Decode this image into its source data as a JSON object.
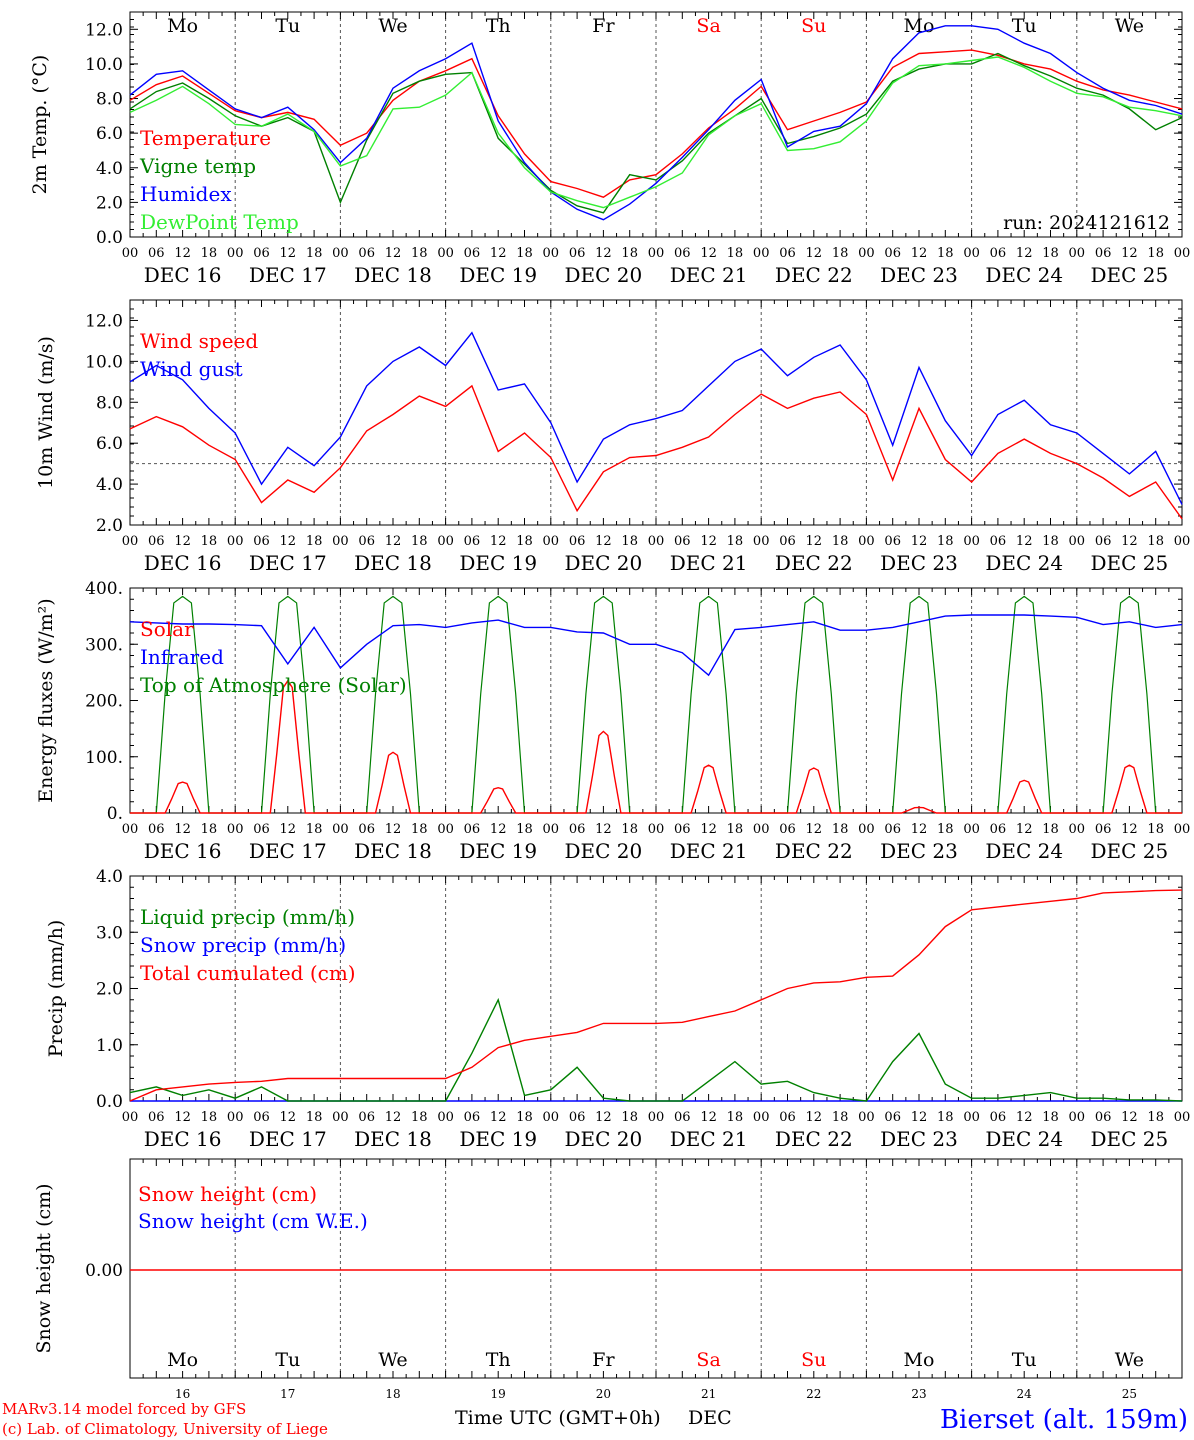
{
  "days": {
    "labels": [
      "Mo",
      "Tu",
      "We",
      "Th",
      "Fr",
      "Sa",
      "Su",
      "Mo",
      "Tu",
      "We"
    ],
    "weekend_flags": [
      false,
      false,
      false,
      false,
      false,
      true,
      true,
      false,
      false,
      false
    ],
    "dates": [
      "DEC 16",
      "DEC 17",
      "DEC 18",
      "DEC 19",
      "DEC 20",
      "DEC 21",
      "DEC 22",
      "DEC 23",
      "DEC 24",
      "DEC 25"
    ],
    "day_numbers": [
      "16",
      "17",
      "18",
      "19",
      "20",
      "21",
      "22",
      "23",
      "24",
      "25"
    ],
    "hour_ticks": [
      "00",
      "06",
      "12",
      "18"
    ],
    "final_tick": "00"
  },
  "footer": {
    "credit_line1": "MARv3.14 model forced by GFS",
    "credit_line2": "(c) Lab. of Climatology, University of Liege",
    "time_axis": "Time UTC (GMT+0h)",
    "month": "DEC",
    "station": "Bierset (alt. 159m)"
  },
  "colors": {
    "red": "#ff0000",
    "green": "#008000",
    "blue": "#0000ff",
    "light_green": "#33ee33",
    "grid": "#555555",
    "axis": "#000000"
  },
  "chart_data": [
    {
      "type": "line",
      "ylabel": "2m Temp. (°C)",
      "ylim": [
        0,
        13
      ],
      "yticks": [
        "0.0",
        "2.0",
        "4.0",
        "6.0",
        "8.0",
        "10.0",
        "12.0"
      ],
      "annotation": "run: 2024121612",
      "x_hours": [
        0,
        6,
        12,
        18,
        24,
        30,
        36,
        42,
        48,
        54,
        60,
        66,
        72,
        78,
        84,
        90,
        96,
        102,
        108,
        114,
        120,
        126,
        132,
        138,
        144,
        150,
        156,
        162,
        168,
        174,
        180,
        186,
        192,
        198,
        204,
        210,
        216,
        222,
        228,
        234,
        240
      ],
      "series": [
        {
          "name": "Temperature",
          "color": "red",
          "values": [
            7.9,
            8.8,
            9.3,
            8.3,
            7.3,
            6.9,
            7.2,
            6.8,
            5.3,
            6.0,
            7.9,
            9.0,
            9.6,
            10.3,
            7.0,
            4.8,
            3.2,
            2.8,
            2.3,
            3.3,
            3.6,
            4.8,
            6.3,
            7.4,
            8.7,
            6.2,
            6.7,
            7.2,
            7.8,
            9.8,
            10.6,
            10.7,
            10.8,
            10.5,
            10.0,
            9.7,
            9.0,
            8.5,
            8.2,
            7.8,
            7.4
          ]
        },
        {
          "name": "Vigne temp",
          "color": "green",
          "values": [
            7.4,
            8.4,
            8.9,
            8.0,
            7.0,
            6.4,
            6.9,
            6.1,
            2.0,
            5.6,
            8.3,
            9.0,
            9.4,
            9.5,
            5.7,
            4.2,
            2.7,
            1.8,
            1.4,
            3.6,
            3.3,
            4.4,
            6.0,
            7.0,
            8.0,
            5.4,
            5.8,
            6.3,
            7.1,
            9.0,
            9.7,
            10.0,
            10.0,
            10.6,
            9.9,
            9.3,
            8.6,
            8.2,
            7.4,
            6.2,
            6.9
          ]
        },
        {
          "name": "Humidex",
          "color": "blue",
          "values": [
            8.2,
            9.4,
            9.6,
            8.5,
            7.4,
            6.9,
            7.5,
            6.2,
            4.3,
            5.7,
            8.6,
            9.6,
            10.3,
            11.2,
            6.7,
            4.3,
            2.6,
            1.6,
            1.0,
            1.9,
            3.1,
            4.6,
            6.2,
            7.9,
            9.1,
            5.2,
            6.1,
            6.4,
            7.7,
            10.3,
            11.8,
            12.2,
            12.2,
            12.0,
            11.2,
            10.6,
            9.5,
            8.6,
            7.9,
            7.6,
            7.1
          ]
        },
        {
          "name": "DewPoint Temp",
          "color": "light_green",
          "values": [
            7.2,
            7.9,
            8.7,
            7.7,
            6.5,
            6.4,
            7.1,
            6.1,
            4.1,
            4.7,
            7.4,
            7.5,
            8.2,
            9.5,
            6.0,
            4.0,
            2.6,
            2.1,
            1.7,
            2.3,
            2.9,
            3.7,
            5.9,
            7.0,
            7.7,
            5.0,
            5.1,
            5.5,
            6.7,
            8.9,
            9.9,
            10.0,
            10.2,
            10.4,
            9.8,
            9.0,
            8.3,
            8.1,
            7.5,
            7.3,
            7.0
          ]
        }
      ]
    },
    {
      "type": "line",
      "ylabel": "10m Wind (m/s)",
      "ylim": [
        2,
        13
      ],
      "yticks": [
        "2.0",
        "4.0",
        "6.0",
        "8.0",
        "10.0",
        "12.0"
      ],
      "reference_line": 5,
      "x_hours": [
        0,
        6,
        12,
        18,
        24,
        30,
        36,
        42,
        48,
        54,
        60,
        66,
        72,
        78,
        84,
        90,
        96,
        102,
        108,
        114,
        120,
        126,
        132,
        138,
        144,
        150,
        156,
        162,
        168,
        174,
        180,
        186,
        192,
        198,
        204,
        210,
        216,
        222,
        228,
        234,
        240
      ],
      "series": [
        {
          "name": "Wind speed",
          "color": "red",
          "values": [
            6.7,
            7.3,
            6.8,
            5.9,
            5.2,
            3.1,
            4.2,
            3.6,
            4.8,
            6.6,
            7.4,
            8.3,
            7.8,
            8.8,
            5.6,
            6.5,
            5.3,
            2.7,
            4.6,
            5.3,
            5.4,
            5.8,
            6.3,
            7.4,
            8.4,
            7.7,
            8.2,
            8.5,
            7.4,
            4.2,
            7.7,
            5.2,
            4.1,
            5.5,
            6.2,
            5.5,
            5.0,
            4.3,
            3.4,
            4.1,
            2.3
          ]
        },
        {
          "name": "Wind gust",
          "color": "blue",
          "values": [
            9.0,
            9.8,
            9.1,
            7.7,
            6.5,
            4.0,
            5.8,
            4.9,
            6.3,
            8.8,
            10.0,
            10.7,
            9.8,
            11.4,
            8.6,
            8.9,
            7.0,
            4.1,
            6.2,
            6.9,
            7.2,
            7.6,
            8.8,
            10.0,
            10.6,
            9.3,
            10.2,
            10.8,
            9.1,
            5.9,
            9.7,
            7.1,
            5.4,
            7.4,
            8.1,
            6.9,
            6.5,
            5.5,
            4.5,
            5.6,
            3.0
          ]
        }
      ]
    },
    {
      "type": "line",
      "ylabel": "Energy fluxes (W/m²)",
      "ylim": [
        0,
        400
      ],
      "yticks": [
        "0.",
        "100.",
        "200.",
        "300.",
        "400."
      ],
      "x_hours": [
        0,
        6,
        12,
        18,
        24,
        30,
        36,
        42,
        48,
        54,
        60,
        66,
        72,
        78,
        84,
        90,
        96,
        102,
        108,
        114,
        120,
        126,
        132,
        138,
        144,
        150,
        156,
        162,
        168,
        174,
        180,
        186,
        192,
        198,
        204,
        210,
        216,
        222,
        228,
        234,
        240
      ],
      "series": [
        {
          "name": "Solar",
          "color": "red",
          "peaks": [
            {
              "hour": 12,
              "value": 55
            },
            {
              "hour": 36,
              "value": 235
            },
            {
              "hour": 60,
              "value": 108
            },
            {
              "hour": 84,
              "value": 45
            },
            {
              "hour": 108,
              "value": 145
            },
            {
              "hour": 132,
              "value": 85
            },
            {
              "hour": 156,
              "value": 80
            },
            {
              "hour": 180,
              "value": 10
            },
            {
              "hour": 204,
              "value": 58
            },
            {
              "hour": 228,
              "value": 85
            }
          ]
        },
        {
          "name": "Infrared",
          "color": "blue",
          "values": [
            340,
            338,
            336,
            336,
            335,
            333,
            265,
            330,
            258,
            300,
            333,
            335,
            330,
            338,
            343,
            330,
            330,
            322,
            320,
            300,
            300,
            285,
            245,
            326,
            330,
            335,
            340,
            325,
            325,
            330,
            340,
            350,
            352,
            352,
            352,
            350,
            348,
            335,
            340,
            330,
            335
          ]
        },
        {
          "name": "Top of Atmosphere (Solar)",
          "color": "green",
          "peak_hours": [
            12,
            36,
            60,
            84,
            108,
            132,
            156,
            180,
            204,
            228
          ],
          "peak_value": 385
        }
      ]
    },
    {
      "type": "line",
      "ylabel": "Precip (mm/h)",
      "ylim": [
        0,
        4
      ],
      "yticks": [
        "0.0",
        "1.0",
        "2.0",
        "3.0",
        "4.0"
      ],
      "x_hours": [
        0,
        6,
        12,
        18,
        24,
        30,
        36,
        42,
        48,
        54,
        60,
        66,
        72,
        78,
        84,
        90,
        96,
        102,
        108,
        114,
        120,
        126,
        132,
        138,
        144,
        150,
        156,
        162,
        168,
        174,
        180,
        186,
        192,
        198,
        204,
        210,
        216,
        222,
        228,
        234,
        240
      ],
      "series": [
        {
          "name": "Liquid precip (mm/h)",
          "color": "green",
          "values": [
            0.15,
            0.25,
            0.1,
            0.2,
            0.05,
            0.25,
            0.0,
            0.0,
            0.0,
            0.0,
            0.0,
            0.0,
            0.0,
            0.85,
            1.8,
            0.1,
            0.2,
            0.6,
            0.05,
            0.0,
            0.0,
            0.0,
            0.35,
            0.7,
            0.3,
            0.35,
            0.15,
            0.05,
            0.0,
            0.7,
            1.2,
            0.3,
            0.05,
            0.05,
            0.1,
            0.15,
            0.05,
            0.05,
            0.02,
            0.02,
            0.0
          ]
        },
        {
          "name": "Snow precip (mm/h)",
          "color": "blue",
          "values": [
            0,
            0,
            0,
            0,
            0,
            0,
            0,
            0,
            0,
            0,
            0,
            0,
            0,
            0,
            0,
            0,
            0,
            0,
            0,
            0,
            0,
            0,
            0,
            0,
            0,
            0,
            0,
            0,
            0,
            0,
            0,
            0,
            0,
            0,
            0,
            0,
            0,
            0,
            0,
            0,
            0
          ]
        },
        {
          "name": "Total cumulated (cm)",
          "color": "red",
          "values": [
            0.0,
            0.2,
            0.25,
            0.3,
            0.33,
            0.35,
            0.4,
            0.4,
            0.4,
            0.4,
            0.4,
            0.4,
            0.4,
            0.6,
            0.95,
            1.08,
            1.15,
            1.22,
            1.38,
            1.38,
            1.38,
            1.4,
            1.5,
            1.6,
            1.8,
            2.0,
            2.1,
            2.12,
            2.2,
            2.22,
            2.6,
            3.1,
            3.4,
            3.45,
            3.5,
            3.55,
            3.6,
            3.7,
            3.72,
            3.74,
            3.75
          ]
        }
      ]
    },
    {
      "type": "line",
      "ylabel": "Snow height (cm)",
      "yticks": [
        "0.00"
      ],
      "x_hours": [
        0,
        240
      ],
      "series": [
        {
          "name": "Snow height (cm)",
          "color": "red",
          "values": [
            0.0,
            0.0
          ]
        },
        {
          "name": "Snow height (cm W.E.)",
          "color": "blue",
          "values": [
            0.0,
            0.0
          ]
        }
      ]
    }
  ]
}
